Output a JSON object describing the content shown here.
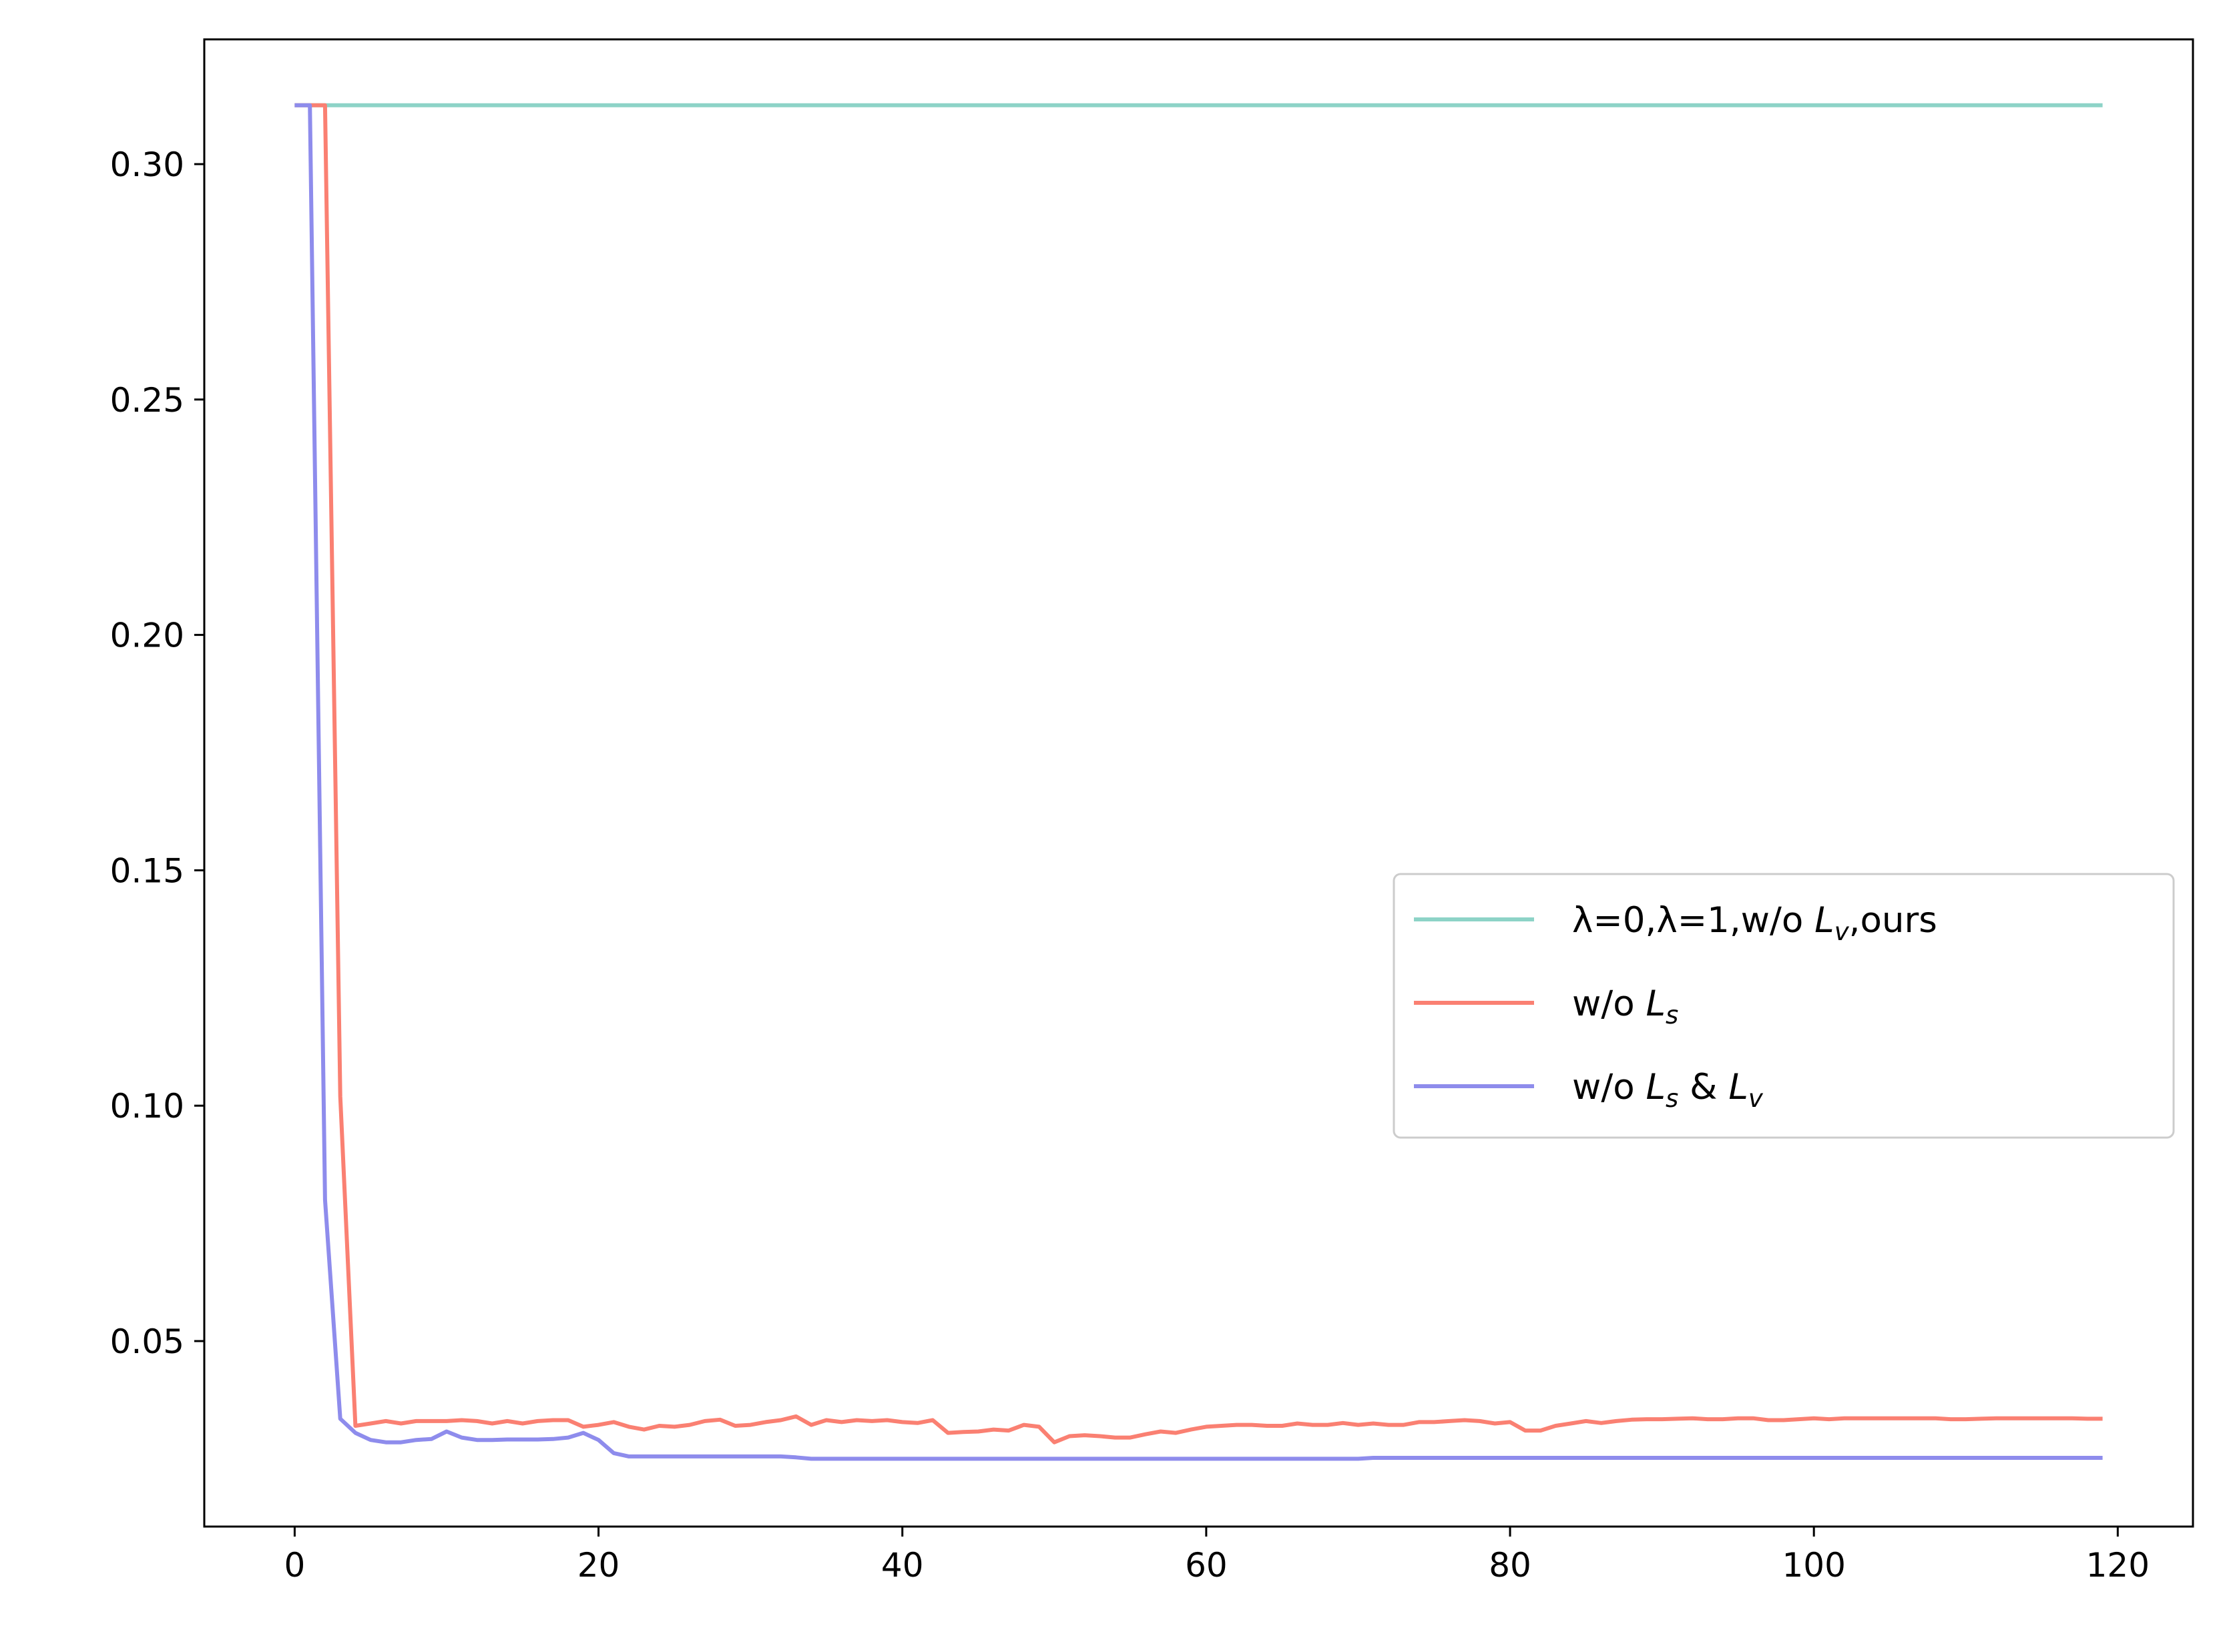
{
  "chart_data": {
    "type": "line",
    "title": "",
    "xlabel": "",
    "ylabel": "",
    "xlim": [
      -5.95,
      124.95
    ],
    "ylim": [
      0.0106,
      0.3265
    ],
    "xticks": [
      0,
      20,
      40,
      60,
      80,
      100,
      120
    ],
    "xtick_labels": [
      "0",
      "20",
      "40",
      "60",
      "80",
      "100",
      "120"
    ],
    "yticks": [
      0.05,
      0.1,
      0.15,
      0.2,
      0.25,
      0.3
    ],
    "ytick_labels": [
      "0.05",
      "0.10",
      "0.15",
      "0.20",
      "0.25",
      "0.30"
    ],
    "grid": false,
    "legend_position": "center-right",
    "series": [
      {
        "legend": {
          "text": "λ=0,λ=1,w/o ",
          "sym": "L",
          "sub": "v",
          "rest": ",ours"
        },
        "color": "#8dd3c7",
        "x": [
          0,
          119
        ],
        "y": [
          0.3125,
          0.3125
        ]
      },
      {
        "legend": {
          "text": "w/o ",
          "sym": "L",
          "sub": "s",
          "rest": ""
        },
        "color": "#fa8072",
        "x": [
          0,
          1,
          2,
          3,
          4,
          5,
          6,
          7,
          8,
          9,
          10,
          11,
          12,
          13,
          14,
          15,
          16,
          17,
          18,
          19,
          20,
          21,
          22,
          23,
          24,
          25,
          26,
          27,
          28,
          29,
          30,
          31,
          32,
          33,
          34,
          35,
          36,
          37,
          38,
          39,
          40,
          41,
          42,
          43,
          44,
          45,
          46,
          47,
          48,
          49,
          50,
          51,
          52,
          53,
          54,
          55,
          56,
          57,
          58,
          59,
          60,
          61,
          62,
          63,
          64,
          65,
          66,
          67,
          68,
          69,
          70,
          71,
          72,
          73,
          74,
          75,
          76,
          77,
          78,
          79,
          80,
          81,
          82,
          83,
          84,
          85,
          86,
          87,
          88,
          89,
          90,
          91,
          92,
          93,
          94,
          95,
          96,
          97,
          98,
          99,
          100,
          101,
          102,
          103,
          104,
          105,
          106,
          107,
          108,
          109,
          110,
          111,
          112,
          113,
          114,
          115,
          116,
          117,
          118,
          119
        ],
        "y": [
          0.3125,
          0.3125,
          0.3125,
          0.102,
          0.032,
          0.0325,
          0.033,
          0.0325,
          0.033,
          0.033,
          0.033,
          0.0332,
          0.033,
          0.0325,
          0.033,
          0.0325,
          0.033,
          0.0332,
          0.0332,
          0.0318,
          0.0322,
          0.0328,
          0.0318,
          0.0312,
          0.032,
          0.0318,
          0.0322,
          0.033,
          0.0333,
          0.032,
          0.0322,
          0.0328,
          0.0332,
          0.034,
          0.0322,
          0.0332,
          0.0328,
          0.0332,
          0.033,
          0.0332,
          0.0328,
          0.0326,
          0.0332,
          0.0305,
          0.0307,
          0.0308,
          0.0312,
          0.031,
          0.0322,
          0.0318,
          0.0285,
          0.0298,
          0.03,
          0.0298,
          0.0295,
          0.0295,
          0.0302,
          0.0308,
          0.0305,
          0.0312,
          0.0318,
          0.032,
          0.0322,
          0.0322,
          0.032,
          0.032,
          0.0325,
          0.0322,
          0.0322,
          0.0326,
          0.0322,
          0.0325,
          0.0322,
          0.0322,
          0.0328,
          0.0328,
          0.033,
          0.0332,
          0.033,
          0.0325,
          0.0328,
          0.031,
          0.031,
          0.032,
          0.0325,
          0.033,
          0.0326,
          0.033,
          0.0333,
          0.0334,
          0.0334,
          0.0335,
          0.0336,
          0.0334,
          0.0334,
          0.0336,
          0.0336,
          0.0332,
          0.0332,
          0.0334,
          0.0336,
          0.0334,
          0.0336,
          0.0336,
          0.0336,
          0.0336,
          0.0336,
          0.0336,
          0.0336,
          0.0334,
          0.0334,
          0.0335,
          0.0336,
          0.0336,
          0.0336,
          0.0336,
          0.0336,
          0.0336,
          0.0335,
          0.0335
        ]
      },
      {
        "legend": {
          "text": "w/o ",
          "sym": "L",
          "sub": "s",
          "rest": " & ",
          "sym2": "L",
          "sub2": "v"
        },
        "color": "#8e8cec",
        "x": [
          0,
          1,
          2,
          3,
          4,
          5,
          6,
          7,
          8,
          9,
          10,
          11,
          12,
          13,
          14,
          15,
          16,
          17,
          18,
          19,
          20,
          21,
          22,
          23,
          24,
          25,
          26,
          27,
          28,
          29,
          30,
          31,
          32,
          33,
          34,
          35,
          36,
          37,
          38,
          39,
          40,
          41,
          42,
          43,
          44,
          45,
          46,
          47,
          48,
          49,
          50,
          51,
          52,
          53,
          54,
          55,
          56,
          57,
          58,
          59,
          60,
          61,
          62,
          63,
          64,
          65,
          66,
          67,
          68,
          69,
          70,
          71,
          72,
          73,
          74,
          75,
          76,
          77,
          78,
          79,
          80,
          81,
          82,
          83,
          84,
          85,
          86,
          87,
          88,
          89,
          90,
          91,
          92,
          93,
          94,
          95,
          96,
          97,
          98,
          99,
          100,
          101,
          102,
          103,
          104,
          105,
          106,
          107,
          108,
          109,
          110,
          111,
          112,
          113,
          114,
          115,
          116,
          117,
          118,
          119
        ],
        "y": [
          0.3125,
          0.3125,
          0.08,
          0.0335,
          0.0305,
          0.029,
          0.0285,
          0.0285,
          0.029,
          0.0292,
          0.0308,
          0.0295,
          0.029,
          0.029,
          0.0291,
          0.0291,
          0.0291,
          0.0292,
          0.0295,
          0.0305,
          0.029,
          0.0262,
          0.0255,
          0.0255,
          0.0255,
          0.0255,
          0.0255,
          0.0255,
          0.0255,
          0.0255,
          0.0255,
          0.0255,
          0.0255,
          0.0253,
          0.025,
          0.025,
          0.025,
          0.025,
          0.025,
          0.025,
          0.025,
          0.025,
          0.025,
          0.025,
          0.025,
          0.025,
          0.025,
          0.025,
          0.025,
          0.025,
          0.025,
          0.025,
          0.025,
          0.025,
          0.025,
          0.025,
          0.025,
          0.025,
          0.025,
          0.025,
          0.025,
          0.025,
          0.025,
          0.025,
          0.025,
          0.025,
          0.025,
          0.025,
          0.025,
          0.025,
          0.025,
          0.0252,
          0.0252,
          0.0252,
          0.0252,
          0.0252,
          0.0252,
          0.0252,
          0.0252,
          0.0252,
          0.0252,
          0.0252,
          0.0252,
          0.0252,
          0.0252,
          0.0252,
          0.0252,
          0.0252,
          0.0252,
          0.0252,
          0.0252,
          0.0252,
          0.0252,
          0.0252,
          0.0252,
          0.0252,
          0.0252,
          0.0252,
          0.0252,
          0.0252,
          0.0252,
          0.0252,
          0.0252,
          0.0252,
          0.0252,
          0.0252,
          0.0252,
          0.0252,
          0.0252,
          0.0252,
          0.0252,
          0.0252,
          0.0252,
          0.0252,
          0.0252,
          0.0252,
          0.0252,
          0.0252,
          0.0252,
          0.0252
        ]
      }
    ]
  }
}
